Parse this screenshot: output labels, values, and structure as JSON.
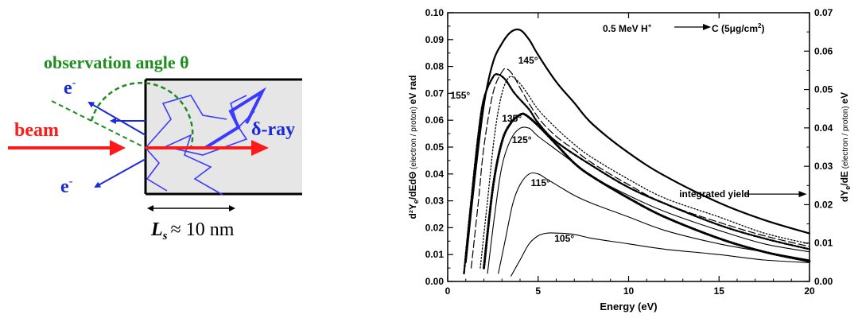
{
  "schematic": {
    "observation_label": "observation angle θ",
    "electron_top": "e",
    "electron_bottom": "e",
    "electron_sup": "-",
    "beam_label": "beam",
    "delta_ray_label": "δ-ray",
    "ls_symbol": "L",
    "ls_sub": "s",
    "ls_value": "≈ 10 nm",
    "colors": {
      "beam": "#ff1a1a",
      "electrons": "#1a2bd6",
      "observation": "#1e8c1e",
      "target": "#e6e6e6"
    }
  },
  "chart_data": {
    "type": "line",
    "annotation": "0.5 MeV H",
    "annotation_sup": "+",
    "annotation_target": "C (5μg/cm",
    "annotation_target_sup": "2",
    "annotation_end": ")",
    "xlabel": "Energy (eV)",
    "ylabel_left": "d²Y",
    "ylabel_left_sub": "e",
    "ylabel_left_rest": "/dEdΘ",
    "ylabel_left_unit": "(electron / proton)",
    "ylabel_left_end": "eV rad",
    "ylabel_right": "dY",
    "ylabel_right_sub": "e",
    "ylabel_right_rest": "/dE",
    "ylabel_right_unit": "(electron / proton)",
    "ylabel_right_end": "eV",
    "xlim": [
      0,
      20
    ],
    "ylim_left": [
      0,
      0.1
    ],
    "ylim_right": [
      0,
      0.07
    ],
    "x_ticks": [
      "0",
      "5",
      "10",
      "15",
      "20"
    ],
    "y_left_ticks": [
      "0.00",
      "0.01",
      "0.02",
      "0.03",
      "0.04",
      "0.05",
      "0.06",
      "0.07",
      "0.08",
      "0.09",
      "0.10"
    ],
    "y_right_ticks": [
      "0.00",
      "0.01",
      "0.02",
      "0.03",
      "0.04",
      "0.05",
      "0.06",
      "0.07"
    ],
    "integrated_label": "integrated yield",
    "series": [
      {
        "name": "integrated yield",
        "axis": "right",
        "style": "thick",
        "x": [
          1.0,
          1.5,
          2.0,
          2.5,
          3.0,
          3.5,
          4.0,
          4.5,
          5.0,
          6.0,
          7.0,
          8.0,
          10.0,
          12.0,
          15.0,
          17.5,
          20.0
        ],
        "y": [
          0.005,
          0.027,
          0.046,
          0.057,
          0.062,
          0.065,
          0.0655,
          0.063,
          0.059,
          0.052,
          0.0465,
          0.041,
          0.0335,
          0.0275,
          0.0205,
          0.016,
          0.0125
        ]
      },
      {
        "name": "145°",
        "axis": "left",
        "style": "dashed",
        "x": [
          1.3,
          1.7,
          2.0,
          2.5,
          3.0,
          3.3,
          3.7,
          4.0,
          5.0,
          6.0,
          7.0,
          8.0,
          10.0,
          12.0,
          15.0,
          17.5,
          20.0
        ],
        "y": [
          0.005,
          0.03,
          0.05,
          0.07,
          0.078,
          0.079,
          0.076,
          0.072,
          0.061,
          0.054,
          0.049,
          0.044,
          0.036,
          0.029,
          0.022,
          0.017,
          0.013
        ]
      },
      {
        "name": "155°",
        "axis": "left",
        "style": "dashdot",
        "x": [
          0.9,
          1.3,
          1.7,
          2.0,
          2.5,
          2.8,
          3.2,
          3.7,
          4.5,
          5.0,
          6.0,
          8.0,
          10.0,
          12.0,
          15.0,
          17.5,
          20.0
        ],
        "y": [
          0.003,
          0.03,
          0.055,
          0.068,
          0.076,
          0.077,
          0.075,
          0.07,
          0.064,
          0.059,
          0.052,
          0.043,
          0.035,
          0.029,
          0.021,
          0.016,
          0.012
        ]
      },
      {
        "name": "",
        "axis": "left",
        "style": "dotted",
        "x": [
          1.8,
          2.2,
          2.6,
          3.0,
          3.4,
          3.8,
          4.3,
          5.0,
          6.0,
          7.0,
          8.0,
          10.0,
          12.0,
          15.0,
          17.5,
          20.0
        ],
        "y": [
          0.005,
          0.03,
          0.055,
          0.07,
          0.076,
          0.075,
          0.071,
          0.064,
          0.057,
          0.051,
          0.046,
          0.038,
          0.031,
          0.024,
          0.018,
          0.014
        ]
      },
      {
        "name": "135°",
        "axis": "left",
        "style": "thick-dotted",
        "x": [
          2.0,
          2.5,
          3.0,
          3.5,
          4.0,
          4.3,
          5.0,
          6.0,
          7.0,
          8.0,
          10.0,
          12.0,
          15.0,
          17.5,
          20.0
        ],
        "y": [
          0.005,
          0.035,
          0.052,
          0.059,
          0.062,
          0.062,
          0.058,
          0.051,
          0.044,
          0.039,
          0.031,
          0.024,
          0.016,
          0.011,
          0.0075
        ]
      },
      {
        "name": "125°",
        "axis": "left",
        "style": "solid",
        "x": [
          2.2,
          2.6,
          3.0,
          3.5,
          4.0,
          4.5,
          5.0,
          6.0,
          7.0,
          8.0,
          10.0,
          12.0,
          15.0,
          17.5,
          20.0
        ],
        "y": [
          0.003,
          0.025,
          0.043,
          0.053,
          0.057,
          0.057,
          0.054,
          0.049,
          0.044,
          0.039,
          0.032,
          0.026,
          0.019,
          0.014,
          0.011
        ]
      },
      {
        "name": "115°",
        "axis": "left",
        "style": "solid",
        "x": [
          2.8,
          3.2,
          3.6,
          4.0,
          4.5,
          5.0,
          5.5,
          6.0,
          7.0,
          8.0,
          10.0,
          12.0,
          15.0,
          17.5,
          20.0
        ],
        "y": [
          0.003,
          0.016,
          0.029,
          0.036,
          0.04,
          0.04,
          0.038,
          0.036,
          0.032,
          0.029,
          0.024,
          0.019,
          0.014,
          0.011,
          0.008
        ]
      },
      {
        "name": "105°",
        "axis": "left",
        "style": "solid",
        "x": [
          3.5,
          4.0,
          4.5,
          5.0,
          5.5,
          6.0,
          7.0,
          8.0,
          10.0,
          12.0,
          15.0,
          17.5,
          20.0
        ],
        "y": [
          0.002,
          0.008,
          0.014,
          0.017,
          0.018,
          0.018,
          0.0175,
          0.016,
          0.014,
          0.012,
          0.01,
          0.008,
          0.007
        ]
      }
    ],
    "curve_labels": [
      "145°",
      "155°",
      "135°",
      "125°",
      "115°",
      "105°"
    ]
  }
}
